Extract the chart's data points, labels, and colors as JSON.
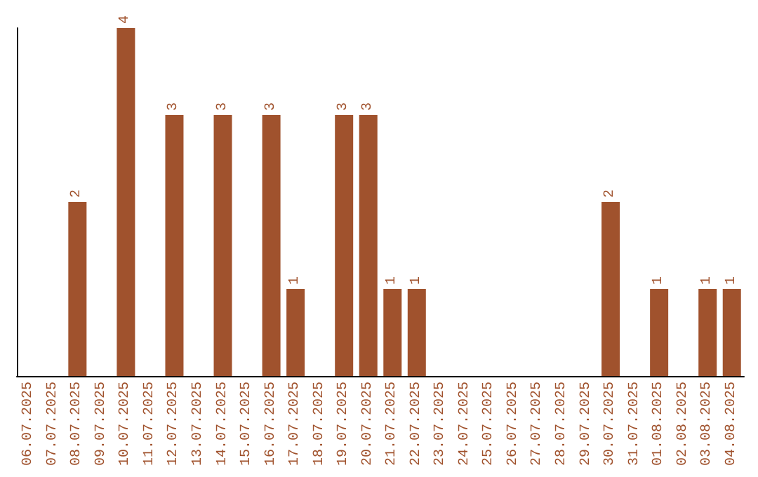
{
  "chart_data": {
    "type": "bar",
    "categories": [
      "06.07.2025",
      "07.07.2025",
      "08.07.2025",
      "09.07.2025",
      "10.07.2025",
      "11.07.2025",
      "12.07.2025",
      "13.07.2025",
      "14.07.2025",
      "15.07.2025",
      "16.07.2025",
      "17.07.2025",
      "18.07.2025",
      "19.07.2025",
      "20.07.2025",
      "21.07.2025",
      "22.07.2025",
      "23.07.2025",
      "24.07.2025",
      "25.07.2025",
      "26.07.2025",
      "27.07.2025",
      "28.07.2025",
      "29.07.2025",
      "30.07.2025",
      "31.07.2025",
      "01.08.2025",
      "02.08.2025",
      "03.08.2025",
      "04.08.2025"
    ],
    "values": [
      0,
      0,
      2,
      0,
      4,
      0,
      3,
      0,
      3,
      0,
      3,
      1,
      0,
      3,
      3,
      1,
      1,
      0,
      0,
      0,
      0,
      0,
      0,
      0,
      2,
      0,
      1,
      0,
      1,
      1
    ],
    "value_labels": [
      null,
      null,
      "2",
      null,
      "4",
      null,
      "3",
      null,
      "3",
      null,
      "3",
      "1",
      null,
      "3",
      "3",
      "1",
      "1",
      null,
      null,
      null,
      null,
      null,
      null,
      null,
      "2",
      null,
      "1",
      null,
      "1",
      "1"
    ],
    "color": "#a0522d",
    "tick_labels": "x",
    "grid": false
  }
}
